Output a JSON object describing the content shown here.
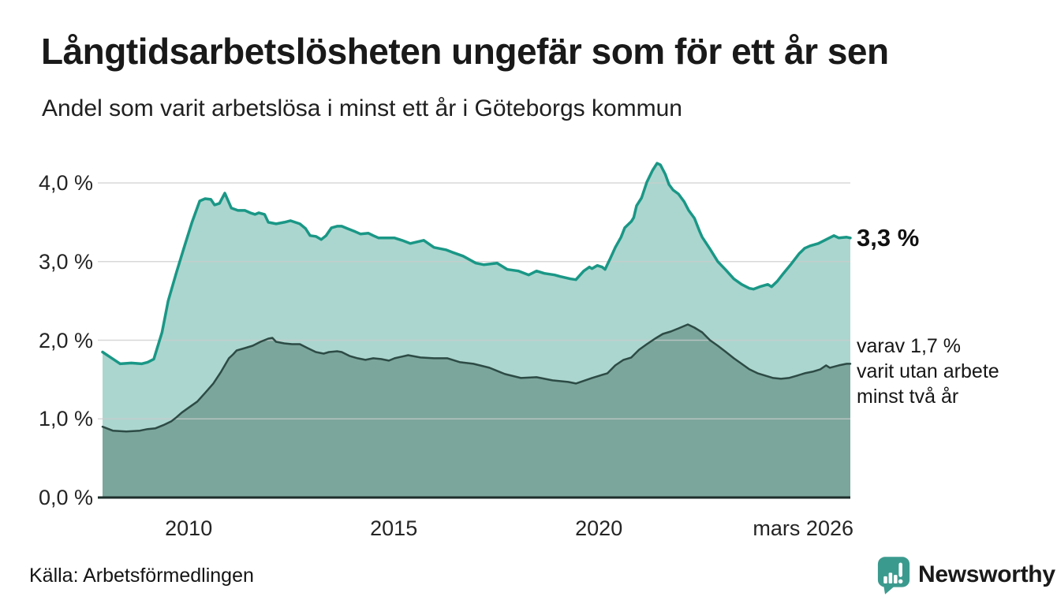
{
  "header": {
    "title": "Långtidsarbetslösheten ungefär som för ett år sen",
    "subtitle": "Andel som varit arbetslösa i minst ett år i Göteborgs kommun"
  },
  "annotations": {
    "latest_total": "3,3 %",
    "secondary_line1": "varav 1,7 %",
    "secondary_line2": "varit utan arbete",
    "secondary_line3": "minst två år"
  },
  "footer": {
    "source": "Källa: Arbetsförmedlingen",
    "brand": "Newsworthy"
  },
  "colors": {
    "total_line": "#1a9786",
    "total_fill": "#abd6cf",
    "twoyear_line": "#2d4b45",
    "twoyear_fill": "#7ba69c",
    "gridline": "#cccccc",
    "axis_line": "#1d2e2a",
    "brand_teal": "#3b9a8e",
    "text": "#1a1a1a"
  },
  "chart_data": {
    "type": "area",
    "title": "Långtidsarbetslösheten ungefär som för ett år sen",
    "subtitle": "Andel som varit arbetslösa i minst ett år i Göteborgs kommun",
    "unit": "%",
    "grid": true,
    "x_axis": {
      "range": [
        2007.9,
        2026.25
      ],
      "ticks": [
        {
          "label": "2010",
          "year": 2010,
          "align": "center"
        },
        {
          "label": "2015",
          "year": 2015,
          "align": "center"
        },
        {
          "label": "2020",
          "year": 2020,
          "align": "center"
        },
        {
          "label": "mars 2026",
          "year": 2026.25,
          "align": "right"
        }
      ]
    },
    "y_axis": {
      "range": [
        0,
        4.25
      ],
      "ticks": [
        {
          "label": "4,0 %",
          "value": 4.0
        },
        {
          "label": "3,0 %",
          "value": 3.0
        },
        {
          "label": "2,0 %",
          "value": 2.0
        },
        {
          "label": "1,0 %",
          "value": 1.0
        },
        {
          "label": "0,0 %",
          "value": 0.0
        }
      ]
    },
    "series": [
      {
        "name": "Andel arbetslösa minst ett år",
        "end_value_label": "3,3 %",
        "line_color": "#1a9786",
        "fill_color": "#abd6cf",
        "line_width": 3.5,
        "points": [
          [
            2007.9,
            1.85
          ],
          [
            2008.1,
            1.78
          ],
          [
            2008.33,
            1.7
          ],
          [
            2008.6,
            1.71
          ],
          [
            2008.85,
            1.7
          ],
          [
            2009.0,
            1.72
          ],
          [
            2009.15,
            1.76
          ],
          [
            2009.35,
            2.1
          ],
          [
            2009.5,
            2.5
          ],
          [
            2009.7,
            2.86
          ],
          [
            2009.9,
            3.2
          ],
          [
            2010.08,
            3.5
          ],
          [
            2010.27,
            3.77
          ],
          [
            2010.4,
            3.8
          ],
          [
            2010.54,
            3.79
          ],
          [
            2010.63,
            3.72
          ],
          [
            2010.75,
            3.74
          ],
          [
            2010.88,
            3.87
          ],
          [
            2011.04,
            3.68
          ],
          [
            2011.2,
            3.65
          ],
          [
            2011.37,
            3.65
          ],
          [
            2011.5,
            3.62
          ],
          [
            2011.62,
            3.6
          ],
          [
            2011.71,
            3.62
          ],
          [
            2011.85,
            3.6
          ],
          [
            2011.94,
            3.5
          ],
          [
            2012.13,
            3.48
          ],
          [
            2012.33,
            3.5
          ],
          [
            2012.48,
            3.52
          ],
          [
            2012.71,
            3.48
          ],
          [
            2012.85,
            3.42
          ],
          [
            2012.96,
            3.33
          ],
          [
            2013.1,
            3.32
          ],
          [
            2013.23,
            3.28
          ],
          [
            2013.35,
            3.33
          ],
          [
            2013.48,
            3.43
          ],
          [
            2013.62,
            3.45
          ],
          [
            2013.73,
            3.45
          ],
          [
            2013.87,
            3.42
          ],
          [
            2014.06,
            3.38
          ],
          [
            2014.19,
            3.35
          ],
          [
            2014.38,
            3.36
          ],
          [
            2014.5,
            3.33
          ],
          [
            2014.63,
            3.3
          ],
          [
            2014.83,
            3.3
          ],
          [
            2015.02,
            3.3
          ],
          [
            2015.2,
            3.27
          ],
          [
            2015.4,
            3.23
          ],
          [
            2015.73,
            3.27
          ],
          [
            2015.98,
            3.18
          ],
          [
            2016.27,
            3.15
          ],
          [
            2016.42,
            3.12
          ],
          [
            2016.69,
            3.07
          ],
          [
            2017.0,
            2.98
          ],
          [
            2017.19,
            2.96
          ],
          [
            2017.52,
            2.98
          ],
          [
            2017.77,
            2.9
          ],
          [
            2018.04,
            2.88
          ],
          [
            2018.29,
            2.83
          ],
          [
            2018.48,
            2.88
          ],
          [
            2018.67,
            2.85
          ],
          [
            2018.92,
            2.83
          ],
          [
            2019.06,
            2.81
          ],
          [
            2019.31,
            2.78
          ],
          [
            2019.44,
            2.77
          ],
          [
            2019.63,
            2.88
          ],
          [
            2019.77,
            2.93
          ],
          [
            2019.83,
            2.91
          ],
          [
            2019.96,
            2.95
          ],
          [
            2020.08,
            2.93
          ],
          [
            2020.15,
            2.9
          ],
          [
            2020.27,
            3.03
          ],
          [
            2020.4,
            3.18
          ],
          [
            2020.54,
            3.31
          ],
          [
            2020.63,
            3.43
          ],
          [
            2020.73,
            3.48
          ],
          [
            2020.79,
            3.51
          ],
          [
            2020.85,
            3.56
          ],
          [
            2020.92,
            3.71
          ],
          [
            2021.04,
            3.81
          ],
          [
            2021.17,
            4.01
          ],
          [
            2021.31,
            4.16
          ],
          [
            2021.42,
            4.25
          ],
          [
            2021.5,
            4.23
          ],
          [
            2021.62,
            4.11
          ],
          [
            2021.71,
            3.98
          ],
          [
            2021.81,
            3.91
          ],
          [
            2021.94,
            3.86
          ],
          [
            2022.08,
            3.76
          ],
          [
            2022.19,
            3.65
          ],
          [
            2022.33,
            3.55
          ],
          [
            2022.46,
            3.38
          ],
          [
            2022.52,
            3.31
          ],
          [
            2022.71,
            3.16
          ],
          [
            2022.9,
            3.0
          ],
          [
            2023.1,
            2.89
          ],
          [
            2023.29,
            2.78
          ],
          [
            2023.48,
            2.71
          ],
          [
            2023.67,
            2.66
          ],
          [
            2023.77,
            2.65
          ],
          [
            2023.92,
            2.68
          ],
          [
            2024.12,
            2.71
          ],
          [
            2024.21,
            2.68
          ],
          [
            2024.35,
            2.75
          ],
          [
            2024.5,
            2.85
          ],
          [
            2024.69,
            2.97
          ],
          [
            2024.88,
            3.1
          ],
          [
            2025.02,
            3.17
          ],
          [
            2025.15,
            3.2
          ],
          [
            2025.35,
            3.23
          ],
          [
            2025.54,
            3.28
          ],
          [
            2025.73,
            3.33
          ],
          [
            2025.85,
            3.3
          ],
          [
            2026.04,
            3.31
          ],
          [
            2026.13,
            3.3
          ]
        ]
      },
      {
        "name": "varav utan arbete minst två år",
        "end_value_label": "varav 1,7 % varit utan arbete minst två år",
        "line_color": "#2d4b45",
        "fill_color": "#7ba69c",
        "line_width": 2.5,
        "points": [
          [
            2007.9,
            0.9
          ],
          [
            2008.15,
            0.85
          ],
          [
            2008.48,
            0.84
          ],
          [
            2008.81,
            0.85
          ],
          [
            2009.0,
            0.87
          ],
          [
            2009.19,
            0.88
          ],
          [
            2009.38,
            0.92
          ],
          [
            2009.58,
            0.97
          ],
          [
            2009.7,
            1.02
          ],
          [
            2009.83,
            1.08
          ],
          [
            2010.02,
            1.15
          ],
          [
            2010.21,
            1.22
          ],
          [
            2010.4,
            1.33
          ],
          [
            2010.6,
            1.45
          ],
          [
            2010.79,
            1.6
          ],
          [
            2010.98,
            1.77
          ],
          [
            2011.08,
            1.82
          ],
          [
            2011.17,
            1.87
          ],
          [
            2011.37,
            1.9
          ],
          [
            2011.56,
            1.93
          ],
          [
            2011.75,
            1.98
          ],
          [
            2011.94,
            2.02
          ],
          [
            2012.04,
            2.03
          ],
          [
            2012.13,
            1.98
          ],
          [
            2012.33,
            1.96
          ],
          [
            2012.52,
            1.95
          ],
          [
            2012.71,
            1.95
          ],
          [
            2012.9,
            1.9
          ],
          [
            2013.1,
            1.85
          ],
          [
            2013.29,
            1.83
          ],
          [
            2013.42,
            1.85
          ],
          [
            2013.62,
            1.86
          ],
          [
            2013.73,
            1.85
          ],
          [
            2013.92,
            1.8
          ],
          [
            2014.12,
            1.77
          ],
          [
            2014.31,
            1.75
          ],
          [
            2014.5,
            1.77
          ],
          [
            2014.69,
            1.76
          ],
          [
            2014.88,
            1.74
          ],
          [
            2015.02,
            1.77
          ],
          [
            2015.35,
            1.81
          ],
          [
            2015.65,
            1.78
          ],
          [
            2015.98,
            1.77
          ],
          [
            2016.31,
            1.77
          ],
          [
            2016.62,
            1.72
          ],
          [
            2016.94,
            1.7
          ],
          [
            2017.33,
            1.65
          ],
          [
            2017.71,
            1.57
          ],
          [
            2018.1,
            1.52
          ],
          [
            2018.48,
            1.53
          ],
          [
            2018.87,
            1.49
          ],
          [
            2019.25,
            1.47
          ],
          [
            2019.44,
            1.45
          ],
          [
            2019.83,
            1.52
          ],
          [
            2020.21,
            1.58
          ],
          [
            2020.4,
            1.68
          ],
          [
            2020.6,
            1.75
          ],
          [
            2020.79,
            1.78
          ],
          [
            2020.98,
            1.88
          ],
          [
            2021.17,
            1.95
          ],
          [
            2021.37,
            2.02
          ],
          [
            2021.56,
            2.08
          ],
          [
            2021.75,
            2.11
          ],
          [
            2021.94,
            2.15
          ],
          [
            2022.17,
            2.2
          ],
          [
            2022.33,
            2.16
          ],
          [
            2022.52,
            2.1
          ],
          [
            2022.71,
            2.0
          ],
          [
            2022.9,
            1.93
          ],
          [
            2023.1,
            1.85
          ],
          [
            2023.29,
            1.77
          ],
          [
            2023.48,
            1.7
          ],
          [
            2023.67,
            1.63
          ],
          [
            2023.87,
            1.58
          ],
          [
            2024.06,
            1.55
          ],
          [
            2024.25,
            1.52
          ],
          [
            2024.44,
            1.51
          ],
          [
            2024.63,
            1.52
          ],
          [
            2024.83,
            1.55
          ],
          [
            2025.02,
            1.58
          ],
          [
            2025.21,
            1.6
          ],
          [
            2025.4,
            1.63
          ],
          [
            2025.54,
            1.68
          ],
          [
            2025.63,
            1.65
          ],
          [
            2025.85,
            1.68
          ],
          [
            2026.04,
            1.7
          ],
          [
            2026.13,
            1.7
          ]
        ]
      }
    ]
  }
}
